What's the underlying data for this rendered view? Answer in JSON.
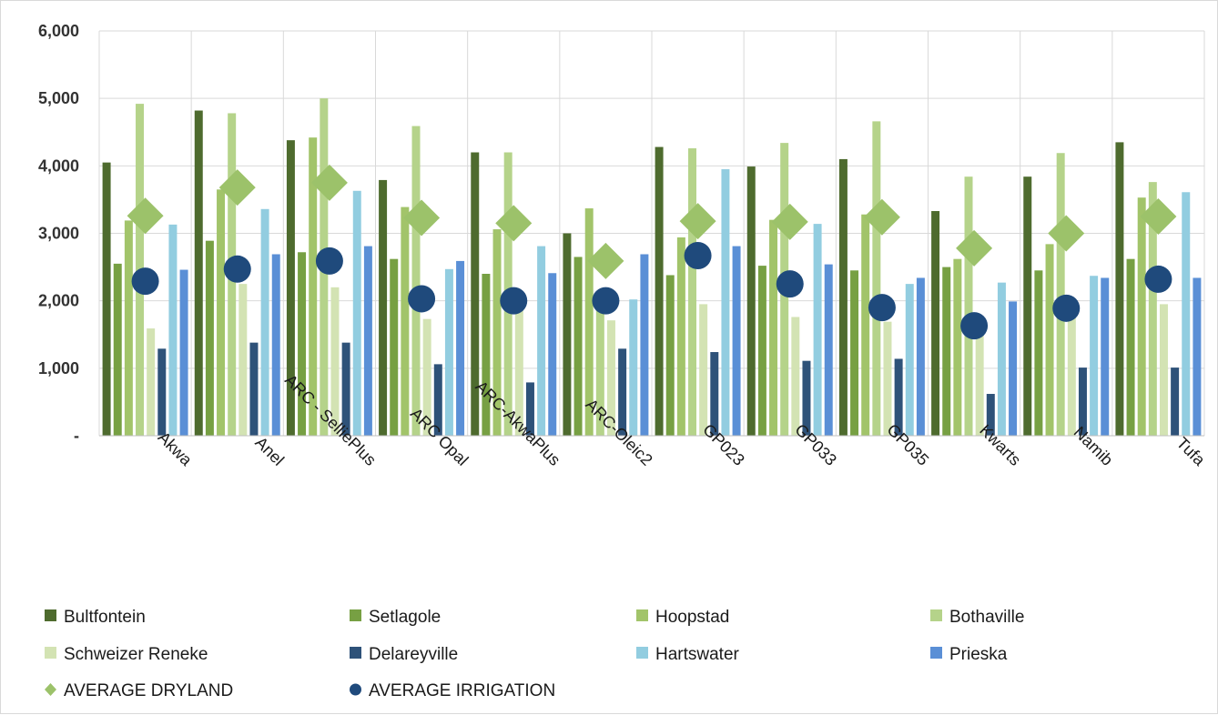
{
  "chart_data": {
    "type": "bar",
    "title": "",
    "xlabel": "",
    "ylabel": "",
    "ylim": [
      0,
      6000
    ],
    "y_ticks": [
      {
        "value": 0,
        "label": "-"
      },
      {
        "value": 1000,
        "label": "1,000"
      },
      {
        "value": 2000,
        "label": "2,000"
      },
      {
        "value": 3000,
        "label": "3,000"
      },
      {
        "value": 4000,
        "label": "4,000"
      },
      {
        "value": 5000,
        "label": "5,000"
      },
      {
        "value": 6000,
        "label": "6,000"
      }
    ],
    "grid": true,
    "legend_position": "bottom",
    "categories": [
      "Akwa",
      "Anel",
      "ARC - SelliePlus",
      "ARC Opal",
      "ARC-AkwaPlus",
      "ARC-Oleic2",
      "GP023",
      "GP033",
      "GP035",
      "Kwarts",
      "Namib",
      "Tufa"
    ],
    "series": [
      {
        "name": "Bultfontein",
        "kind": "bar",
        "color": "#4e6b2e",
        "values": [
          4050,
          4820,
          4380,
          3790,
          4200,
          3000,
          4280,
          3990,
          4100,
          3330,
          3840,
          4350
        ]
      },
      {
        "name": "Setlagole",
        "kind": "bar",
        "color": "#77a043",
        "values": [
          2550,
          2890,
          2720,
          2620,
          2400,
          2650,
          2380,
          2520,
          2450,
          2500,
          2450,
          2620
        ]
      },
      {
        "name": "Hoopstad",
        "kind": "bar",
        "color": "#a2c46a",
        "values": [
          3190,
          3650,
          4420,
          3390,
          3060,
          3370,
          2940,
          3200,
          3280,
          2620,
          2840,
          3530
        ]
      },
      {
        "name": "Bothaville",
        "kind": "bar",
        "color": "#b5d38a",
        "values": [
          4920,
          4780,
          5000,
          4590,
          4200,
          2100,
          4260,
          4340,
          4660,
          3840,
          4190,
          3760
        ]
      },
      {
        "name": "Schweizer Reneke",
        "kind": "bar",
        "color": "#d3e3b3",
        "values": [
          1590,
          2250,
          2200,
          1730,
          1900,
          1710,
          1950,
          1760,
          1690,
          1500,
          1750,
          1950
        ]
      },
      {
        "name": "Delareyville",
        "kind": "bar",
        "color": "#2e5279",
        "values": [
          1290,
          1380,
          1380,
          1060,
          790,
          1290,
          1240,
          1110,
          1140,
          620,
          1010,
          1010
        ]
      },
      {
        "name": "Hartswater",
        "kind": "bar",
        "color": "#92cde0",
        "values": [
          3130,
          3360,
          3630,
          2470,
          2810,
          2020,
          3950,
          3140,
          2250,
          2270,
          2370,
          3610
        ]
      },
      {
        "name": "Prieska",
        "kind": "bar",
        "color": "#5a8fd6",
        "values": [
          2460,
          2690,
          2810,
          2590,
          2410,
          2690,
          2810,
          2540,
          2340,
          1990,
          2340,
          2340
        ]
      },
      {
        "name": "AVERAGE DRYLAND",
        "kind": "marker",
        "marker": "diamond",
        "color": "#9cc26a",
        "values": [
          3260,
          3680,
          3750,
          3230,
          3150,
          2590,
          3180,
          3170,
          3240,
          2780,
          3000,
          3250
        ]
      },
      {
        "name": "AVERAGE IRRIGATION",
        "kind": "marker",
        "marker": "circle",
        "color": "#1f4a7c",
        "values": [
          2290,
          2470,
          2590,
          2030,
          2000,
          2000,
          2670,
          2250,
          1900,
          1630,
          1890,
          2320
        ]
      }
    ]
  }
}
